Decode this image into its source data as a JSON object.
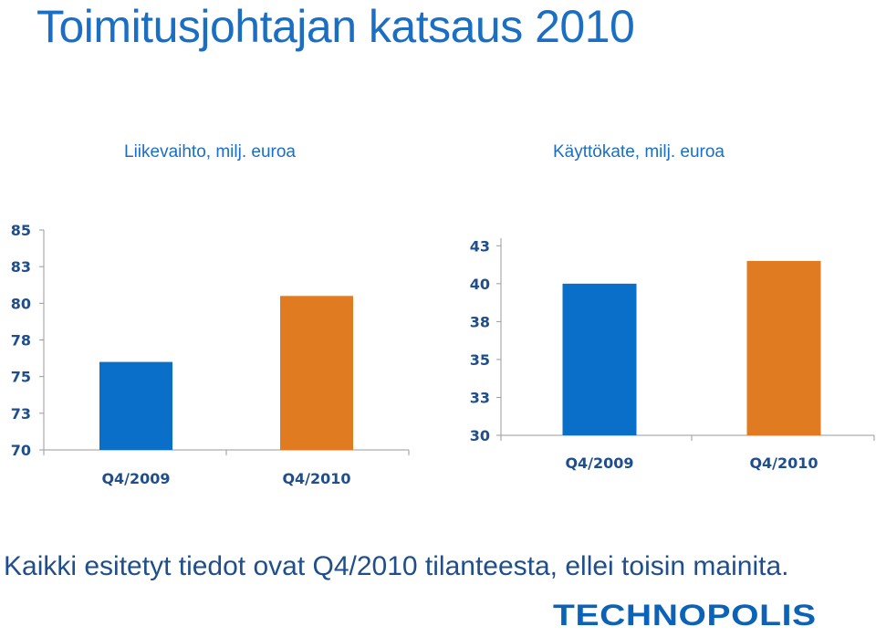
{
  "page": {
    "title": "Toimitusjohtajan katsaus 2010",
    "footer": "Kaikki esitetyt tiedot ovat Q4/2010 tilanteesta, ellei toisin mainita.",
    "logo": "TECHNOPOLIS"
  },
  "colors": {
    "accent": "#1a6fc4",
    "bar_2009": "#0a6fc8",
    "bar_2010": "#e07b22"
  },
  "chart_data": [
    {
      "type": "bar",
      "title": "Liikevaihto, milj. euroa",
      "categories": [
        "Q4/2009",
        "Q4/2010"
      ],
      "values": [
        76.0,
        80.5
      ],
      "ylim": [
        70,
        85
      ],
      "yticks": [
        70,
        72.5,
        75,
        77.5,
        80,
        82.5,
        85
      ],
      "ytick_labels": [
        "70",
        "73",
        "75",
        "78",
        "80",
        "83",
        "85"
      ],
      "xlabel": "",
      "ylabel": "",
      "grid": false
    },
    {
      "type": "bar",
      "title": "Käyttökate, milj. euroa",
      "categories": [
        "Q4/2009",
        "Q4/2010"
      ],
      "values": [
        40.0,
        41.5
      ],
      "ylim": [
        30,
        43
      ],
      "yticks": [
        30,
        32.5,
        35,
        37.5,
        40,
        42.5
      ],
      "ytick_labels": [
        "30",
        "33",
        "35",
        "38",
        "40",
        "43"
      ],
      "xlabel": "",
      "ylabel": "",
      "grid": false
    }
  ]
}
